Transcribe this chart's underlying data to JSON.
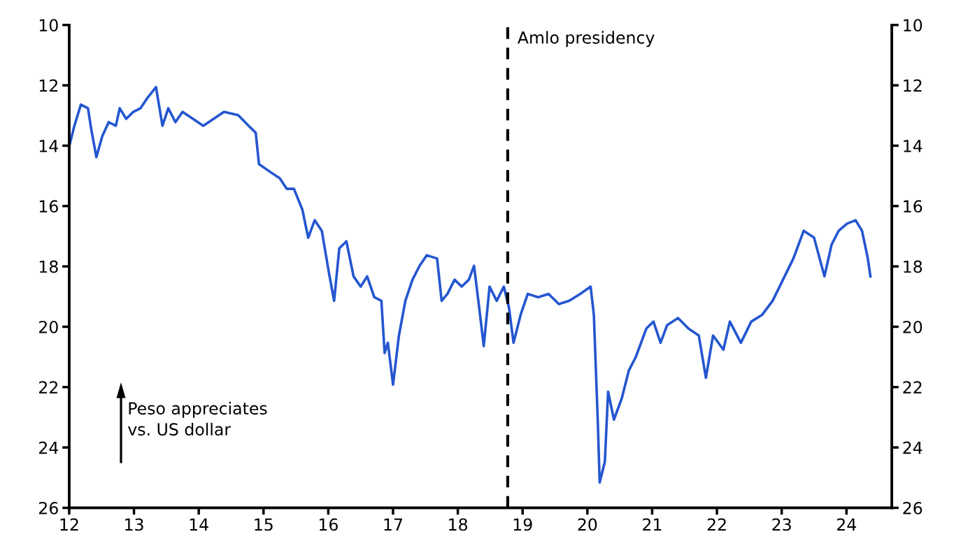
{
  "chart_data": {
    "type": "line",
    "x": [
      12.0,
      12.08,
      12.18,
      12.29,
      12.34,
      12.42,
      12.51,
      12.61,
      12.72,
      12.78,
      12.88,
      12.99,
      13.1,
      13.21,
      13.34,
      13.44,
      13.53,
      13.64,
      13.75,
      13.91,
      14.07,
      14.23,
      14.39,
      14.61,
      14.77,
      14.88,
      14.93,
      15.09,
      15.25,
      15.36,
      15.47,
      15.6,
      15.69,
      15.79,
      15.9,
      16.01,
      16.09,
      16.17,
      16.28,
      16.39,
      16.5,
      16.6,
      16.71,
      16.82,
      16.87,
      16.92,
      17.0,
      17.09,
      17.19,
      17.3,
      17.41,
      17.52,
      17.68,
      17.75,
      17.84,
      17.95,
      18.06,
      18.17,
      18.25,
      18.33,
      18.4,
      18.49,
      18.6,
      18.71,
      18.79,
      18.86,
      18.97,
      19.08,
      19.24,
      19.4,
      19.56,
      19.72,
      19.89,
      20.05,
      20.1,
      20.16,
      20.19,
      20.27,
      20.32,
      20.41,
      20.53,
      20.64,
      20.75,
      20.91,
      21.02,
      21.13,
      21.23,
      21.4,
      21.56,
      21.72,
      21.83,
      21.94,
      22.1,
      22.2,
      22.37,
      22.53,
      22.7,
      22.86,
      23.02,
      23.18,
      23.34,
      23.5,
      23.66,
      23.77,
      23.88,
      24.01,
      24.14,
      24.24,
      24.33,
      24.37
    ],
    "series": [
      {
        "color": "#2456d0",
        "values": [
          14.03,
          13.34,
          12.64,
          12.76,
          13.45,
          14.38,
          13.69,
          13.22,
          13.34,
          12.76,
          13.11,
          12.88,
          12.76,
          12.41,
          12.06,
          13.34,
          12.76,
          13.22,
          12.88,
          13.11,
          13.34,
          13.11,
          12.88,
          12.99,
          13.34,
          13.57,
          14.61,
          14.85,
          15.08,
          15.43,
          15.43,
          16.12,
          17.05,
          16.47,
          16.82,
          18.21,
          19.14,
          17.4,
          17.17,
          18.33,
          18.67,
          18.33,
          19.02,
          19.14,
          20.87,
          20.53,
          21.92,
          20.3,
          19.14,
          18.44,
          17.98,
          17.63,
          17.74,
          19.14,
          18.91,
          18.44,
          18.67,
          18.44,
          17.98,
          19.37,
          20.64,
          18.67,
          19.14,
          18.67,
          19.37,
          20.53,
          19.6,
          18.91,
          19.02,
          18.91,
          19.25,
          19.14,
          18.91,
          18.67,
          19.6,
          23.08,
          25.16,
          24.47,
          22.15,
          23.08,
          22.38,
          21.45,
          20.99,
          20.06,
          19.83,
          20.53,
          19.95,
          19.71,
          20.06,
          20.29,
          21.69,
          20.29,
          20.76,
          19.83,
          20.53,
          19.83,
          19.6,
          19.14,
          18.44,
          17.74,
          16.82,
          17.05,
          18.33,
          17.28,
          16.82,
          16.58,
          16.47,
          16.82,
          17.74,
          18.33
        ]
      }
    ],
    "xlim": [
      12,
      24.7
    ],
    "xticks": [
      12,
      13,
      14,
      15,
      16,
      17,
      18,
      19,
      20,
      21,
      22,
      23,
      24
    ],
    "ylim": [
      26,
      10
    ],
    "yticks": [
      10,
      12,
      14,
      16,
      18,
      20,
      22,
      24,
      26
    ],
    "y2lim": [
      26,
      10
    ],
    "y2ticks": [
      10,
      12,
      14,
      16,
      18,
      20,
      22,
      24,
      26
    ],
    "ref_lines": [
      {
        "axis": "x",
        "value": 18.77,
        "label": "Amlo presidency",
        "color": "#000000",
        "line_style": "dashed"
      }
    ],
    "annotations": [
      "Peso appreciates\nvs. US dollar"
    ],
    "grid": false,
    "legend": false
  }
}
